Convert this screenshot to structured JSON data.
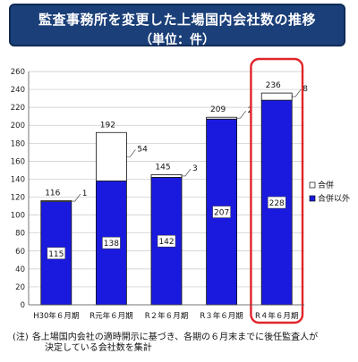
{
  "title": {
    "line1": "監査事務所を変更した上場国内会社数の推移",
    "line2": "（単位：件）"
  },
  "chart_data": {
    "type": "bar",
    "stacked": true,
    "categories": [
      "H30年６月期",
      "R元年６月期",
      "R２年６月期",
      "R３年６月期",
      "R４年６月期"
    ],
    "series": [
      {
        "name": "合併以外",
        "values": [
          115,
          138,
          142,
          207,
          228
        ],
        "color": "#1a1adf"
      },
      {
        "name": "合併",
        "values": [
          1,
          54,
          3,
          2,
          8
        ],
        "color": "#ffffff"
      }
    ],
    "totals": [
      116,
      192,
      145,
      209,
      236
    ],
    "ylim": [
      0,
      260
    ],
    "yticks": [
      0,
      20,
      40,
      60,
      80,
      100,
      120,
      140,
      160,
      180,
      200,
      220,
      240,
      260
    ],
    "legend_position": "right",
    "highlight_index": 4,
    "highlight_color": "#e0252b"
  },
  "footnote": {
    "prefix": "(注)",
    "line1": "各上場国内会社の適時開示に基づき、各期の６月末までに後任監査人が",
    "line2": "決定している会社数を集計"
  }
}
